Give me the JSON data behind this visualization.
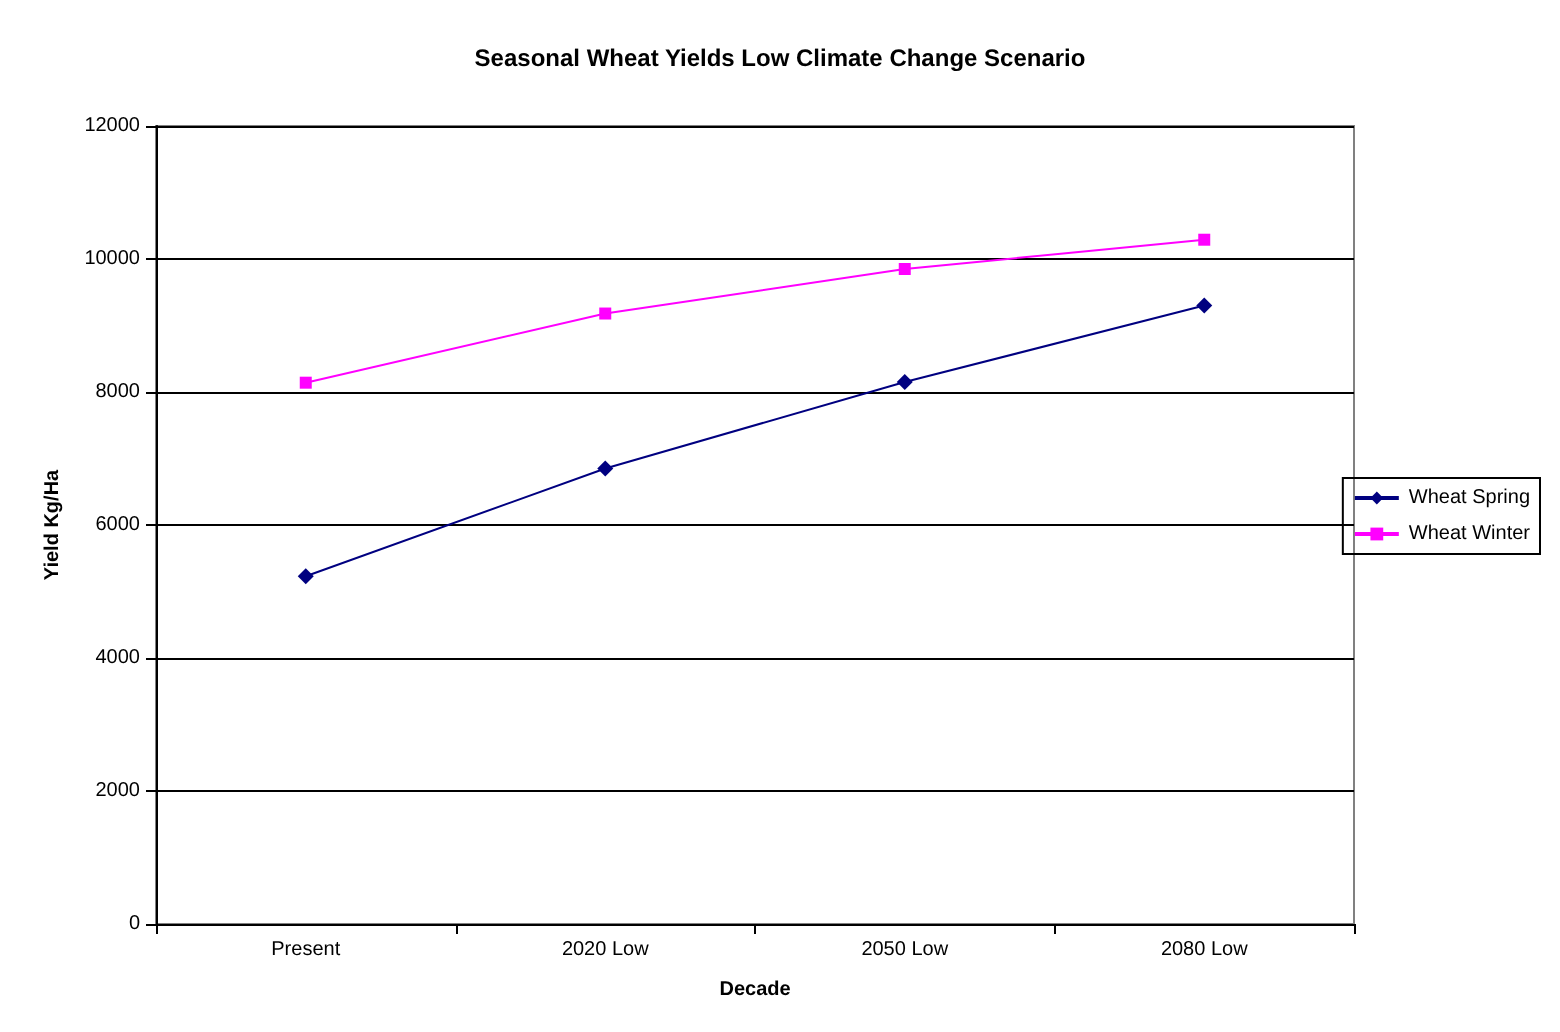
{
  "chart_data": {
    "type": "line",
    "title": "Seasonal Wheat Yields Low Climate Change Scenario",
    "xlabel": "Decade",
    "ylabel": "Yield Kg/Ha",
    "categories": [
      "Present",
      "2020 Low",
      "2050 Low",
      "2080 Low"
    ],
    "series": [
      {
        "name": "Wheat Spring",
        "color": "#000080",
        "marker": "diamond",
        "values": [
          5230,
          6850,
          8150,
          9300
        ]
      },
      {
        "name": "Wheat Winter",
        "color": "#ff00ff",
        "marker": "square",
        "values": [
          8140,
          9180,
          9850,
          10290
        ]
      }
    ],
    "ylim": [
      0,
      12000
    ],
    "yticks": [
      0,
      2000,
      4000,
      6000,
      8000,
      10000,
      12000
    ],
    "grid": "y",
    "legend": "right",
    "line_style": "solid"
  }
}
